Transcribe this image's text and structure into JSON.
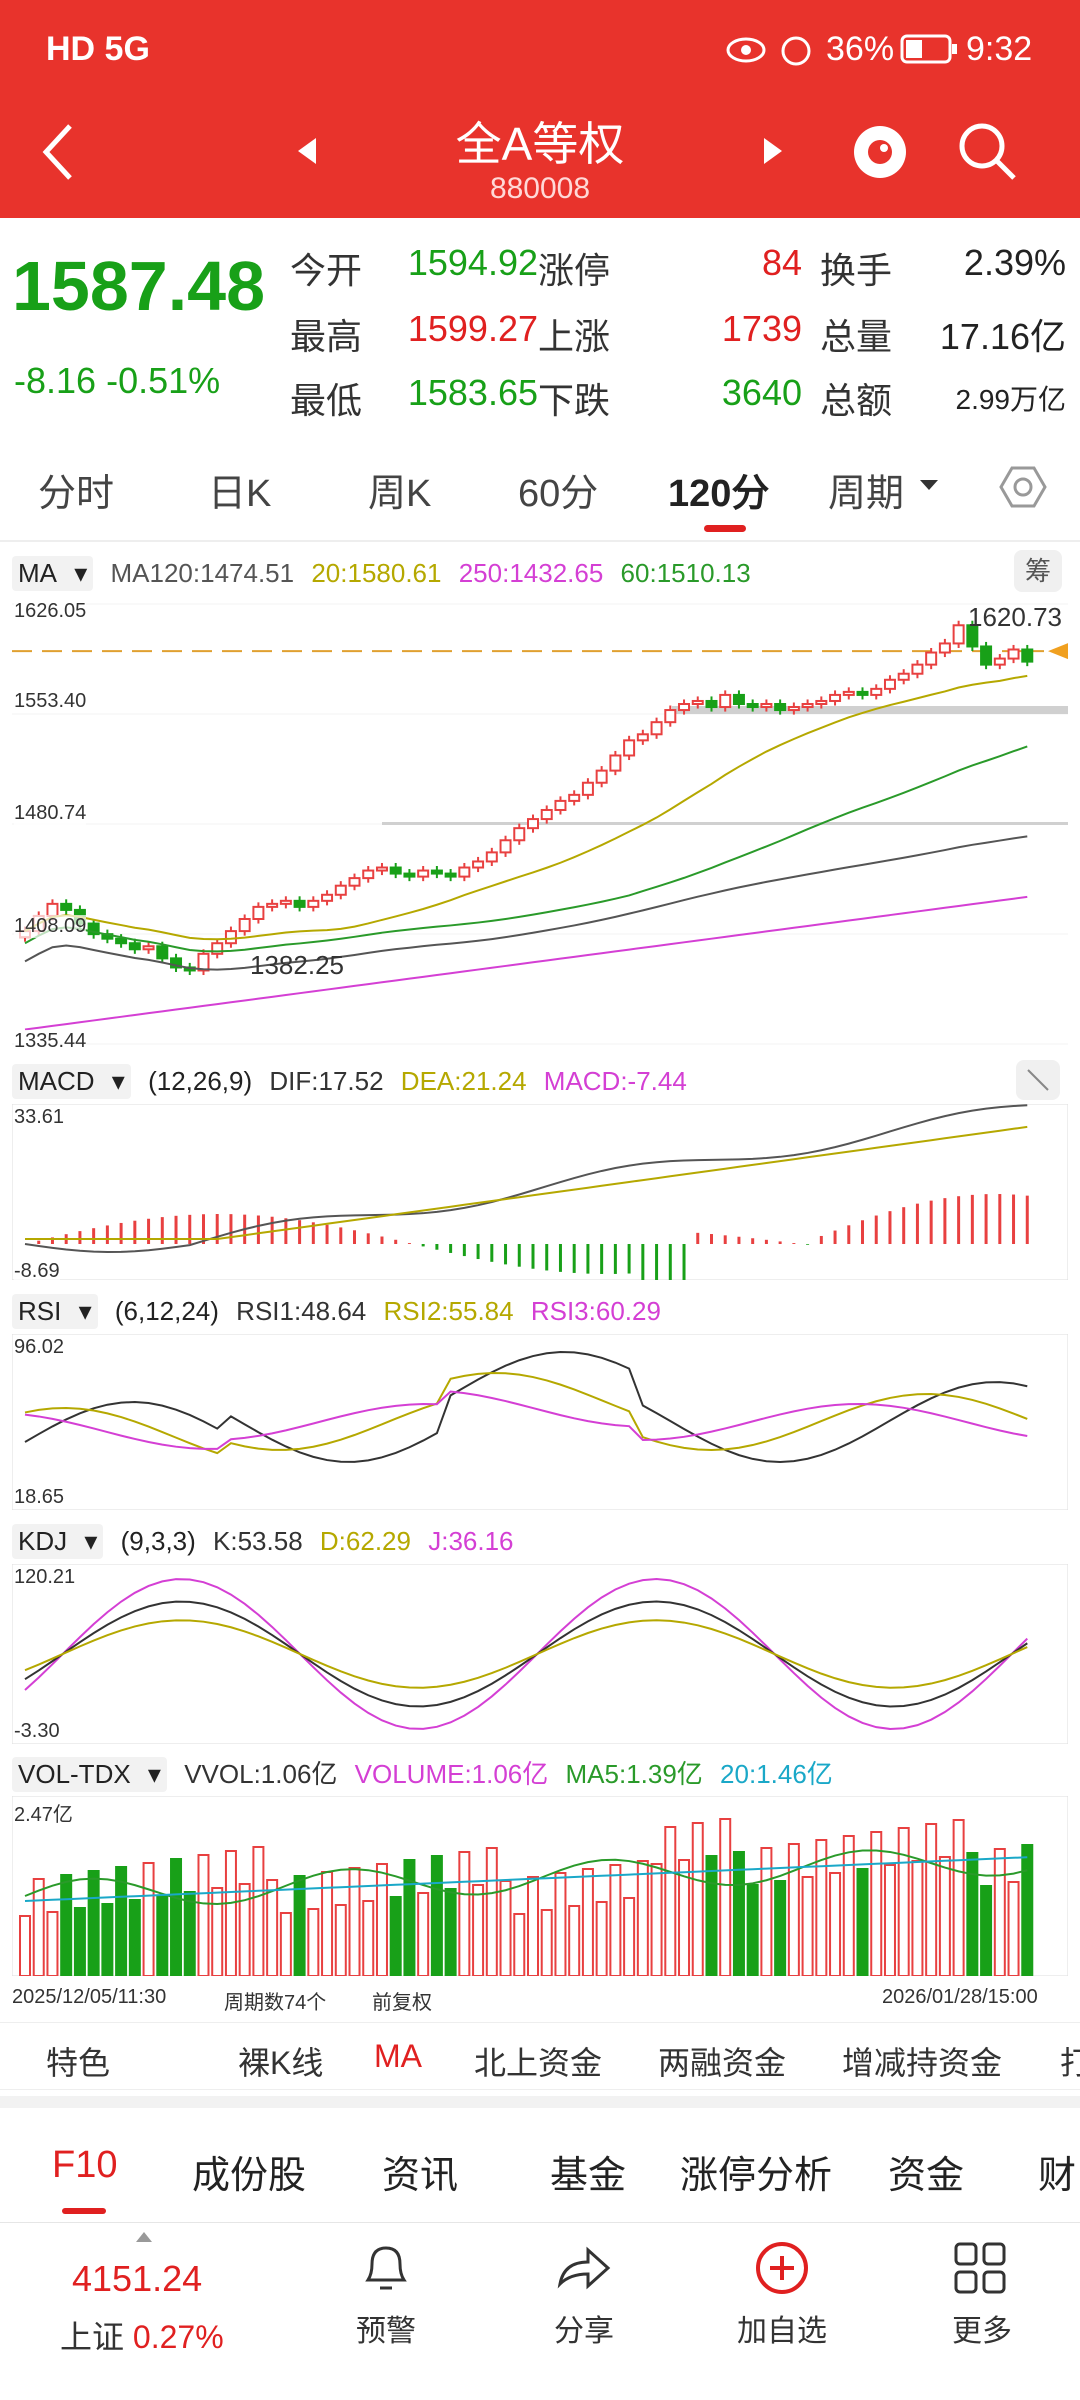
{
  "status": {
    "left": "HD 5G",
    "battery": "36%",
    "time": "9:32"
  },
  "header": {
    "title": "全A等权",
    "code": "880008"
  },
  "quote": {
    "price": "1587.48",
    "change": "-8.16",
    "change_pct": "-0.51%",
    "rows": [
      [
        {
          "l": "今开",
          "v": "1594.92",
          "c": "green"
        },
        {
          "l": "涨停",
          "v": "84",
          "c": "red"
        },
        {
          "l": "换手",
          "v": "2.39%",
          "c": "dark"
        }
      ],
      [
        {
          "l": "最高",
          "v": "1599.27",
          "c": "red"
        },
        {
          "l": "上涨",
          "v": "1739",
          "c": "red"
        },
        {
          "l": "总量",
          "v": "17.16亿",
          "c": "dark"
        }
      ],
      [
        {
          "l": "最低",
          "v": "1583.65",
          "c": "green"
        },
        {
          "l": "下跌",
          "v": "3640",
          "c": "green"
        },
        {
          "l": "总额",
          "v": "2.99万亿",
          "c": "dark"
        }
      ]
    ]
  },
  "tabs": [
    "分时",
    "日K",
    "周K",
    "60分",
    "120分",
    "周期"
  ],
  "active_tab": "120分",
  "ma": {
    "name": "MA",
    "items": [
      "MA120:1474.51",
      "20:1580.61",
      "250:1432.65",
      "60:1510.13"
    ],
    "colors": [
      "#555",
      "#b5a800",
      "#d43fd4",
      "#2a9a2a"
    ],
    "chip": "筹"
  },
  "price_axis": {
    "labels": [
      "1626.05",
      "1553.40",
      "1480.74",
      "1408.09",
      "1335.44"
    ],
    "high_mark": "1620.73",
    "low_mark": "1382.25"
  },
  "macd": {
    "name": "MACD",
    "params": "(12,26,9)",
    "dif": "DIF:17.52",
    "dea": "DEA:21.24",
    "macd": "MACD:-7.44",
    "top": "33.61",
    "bottom": "-8.69"
  },
  "rsi": {
    "name": "RSI",
    "params": "(6,12,24)",
    "r1": "RSI1:48.64",
    "r2": "RSI2:55.84",
    "r3": "RSI3:60.29",
    "top": "96.02",
    "bottom": "18.65"
  },
  "kdj": {
    "name": "KDJ",
    "params": "(9,3,3)",
    "k": "K:53.58",
    "d": "D:62.29",
    "j": "J:36.16",
    "top": "120.21",
    "bottom": "-3.30"
  },
  "vol": {
    "name": "VOL-TDX",
    "vvol": "VVOL:1.06亿",
    "volume": "VOLUME:1.06亿",
    "ma5": "MA5:1.39亿",
    "ma20": "20:1.46亿",
    "top": "2.47亿"
  },
  "footer_info": {
    "start": "2025/12/05/11:30",
    "count": "周期数74个",
    "adj": "前复权",
    "end": "2026/01/28/15:00"
  },
  "feature_tabs": [
    "特色",
    "裸K线",
    "MA",
    "北上资金",
    "两融资金",
    "增减持资金",
    "打"
  ],
  "bottom_tabs": [
    "F10",
    "成份股",
    "资讯",
    "基金",
    "涨停分析",
    "资金",
    "财"
  ],
  "index": {
    "value": "4151.24",
    "name": "上证",
    "pct": "0.27%"
  },
  "nav": [
    "预警",
    "分享",
    "加自选",
    "更多"
  ],
  "chart_data": {
    "type": "candlestick",
    "bars": 74,
    "ylim": [
      1335.44,
      1626.05
    ],
    "high": 1620.73,
    "low": 1382.25,
    "last_close": 1587.48
  }
}
